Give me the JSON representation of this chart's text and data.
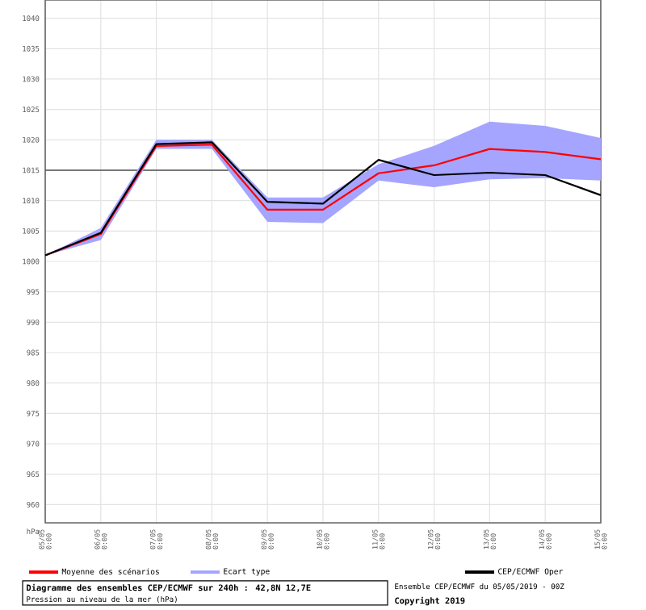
{
  "chart_data": {
    "type": "line",
    "title": "Diagramme des ensembles CEP/ECMWF sur 240h : 42,8N 12,7E",
    "subtitle": "Pression au niveau de la mer (hPa)",
    "ylabel": "hPa",
    "categories": [
      "05/05 0:00",
      "06/05 0:00",
      "07/05 0:00",
      "08/05 0:00",
      "09/05 0:00",
      "10/05 0:00",
      "11/05 0:00",
      "12/05 0:00",
      "13/05 0:00",
      "14/05 0:00",
      "15/05 0:00"
    ],
    "series": [
      {
        "name": "Moyenne des scénarios",
        "color": "#ff0000",
        "values": [
          1001,
          1004.5,
          1019,
          1019.2,
          1008.5,
          1008.5,
          1014.5,
          1015.8,
          1018.5,
          1018,
          1016.8
        ]
      },
      {
        "name": "Ecart type",
        "type": "area",
        "color": "#a5a5ff",
        "values": [
          null,
          null,
          null,
          null,
          null,
          null,
          null,
          null,
          null,
          null,
          null
        ],
        "lower": [
          1001,
          1003.5,
          1018.5,
          1018.5,
          1006.5,
          1006.3,
          1013.3,
          1012.2,
          1013.5,
          1013.7,
          1013.3
        ],
        "upper": [
          1001,
          1005.5,
          1020,
          1020,
          1010.5,
          1010.5,
          1016,
          1019,
          1023,
          1022.3,
          1020.3
        ]
      },
      {
        "name": "CEP/ECMWF Oper",
        "color": "#000000",
        "values": [
          1001,
          1004.7,
          1019.3,
          1019.6,
          1009.8,
          1009.5,
          1016.7,
          1014.2,
          1014.6,
          1014.2,
          1010.9
        ]
      }
    ],
    "ylim": [
      957,
      1043
    ],
    "yticks": [
      960,
      965,
      970,
      975,
      980,
      985,
      990,
      995,
      1000,
      1005,
      1010,
      1015,
      1020,
      1025,
      1030,
      1035,
      1040
    ],
    "grid": true,
    "legend": "bottom",
    "ref_lines": [
      {
        "axis": "y",
        "value": 1015,
        "color": "#505050"
      }
    ],
    "annotations": [
      "Ensemble CEP/ECMWF du 05/05/2019 - 00Z",
      "Copyright 2019"
    ]
  }
}
